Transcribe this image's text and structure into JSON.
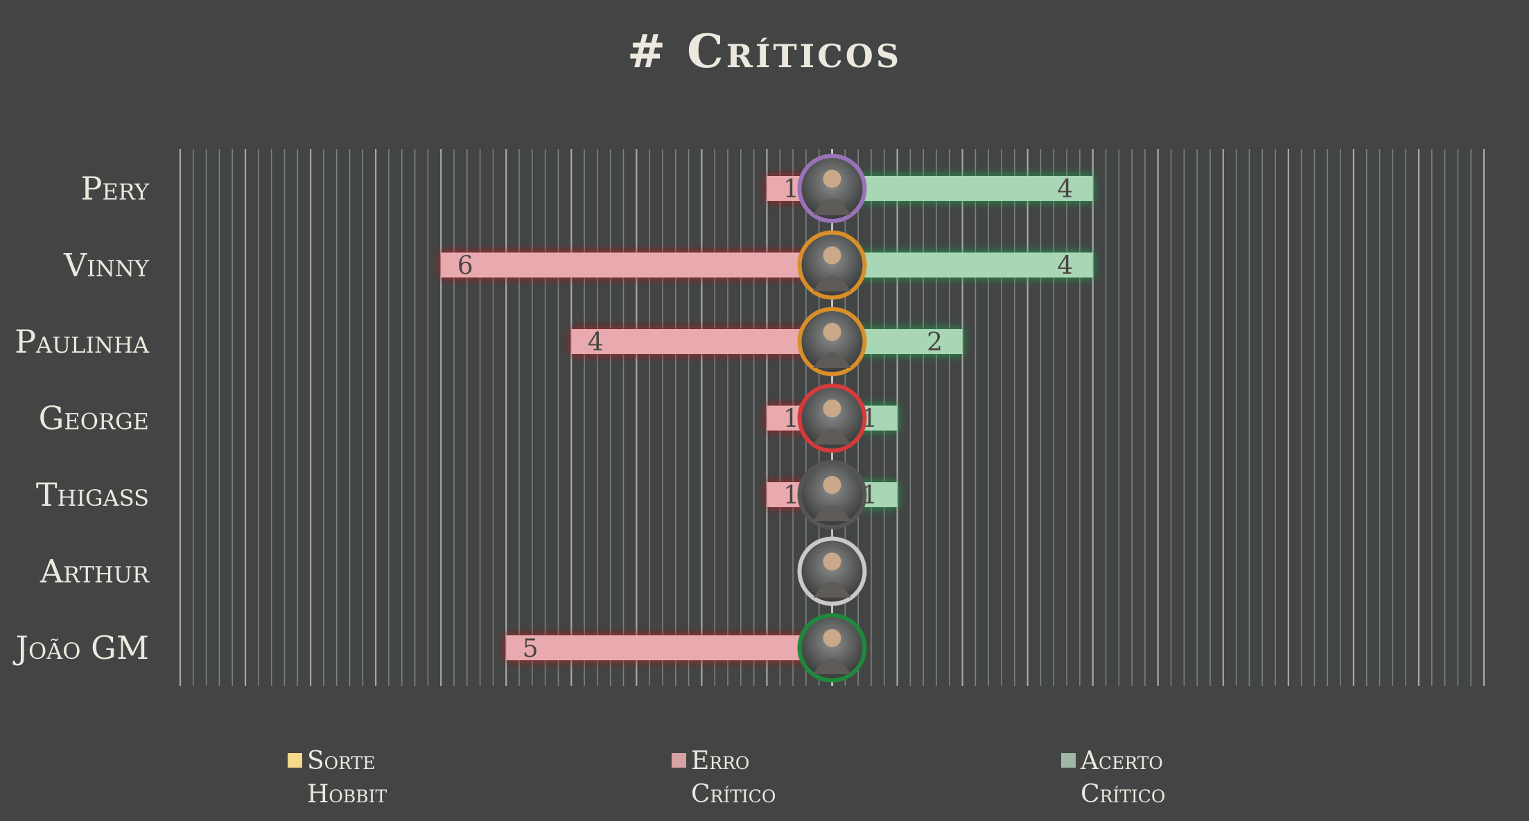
{
  "chart_data": {
    "type": "bar",
    "orientation": "horizontal-diverging",
    "title": "# Críticos",
    "categories": [
      "Pery",
      "Vinny",
      "Paulinha",
      "George",
      "Thigass",
      "Arthur",
      "João GM"
    ],
    "series": [
      {
        "name": "Sorte Hobbit",
        "color": "#f5d98b",
        "values": [
          0,
          0,
          0,
          0,
          0,
          0,
          0
        ]
      },
      {
        "name": "Erro Crítico",
        "color": "#d9a3a6",
        "values": [
          1,
          6,
          4,
          1,
          1,
          0,
          5
        ]
      },
      {
        "name": "Acerto Crítico",
        "color": "#9fb7a4",
        "values": [
          4,
          4,
          2,
          1,
          1,
          0,
          0
        ]
      }
    ],
    "xlim": [
      -10,
      10
    ],
    "grid": true,
    "legend": "bottom",
    "avatar_ring_colors": [
      "#9a72b8",
      "#d88f2a",
      "#d88f2a",
      "#d63a3a",
      "#555555",
      "#c9c9c9",
      "#1f8a3b"
    ],
    "bar_colors": {
      "negative": "#e8aaae",
      "positive": "#a9d6b4",
      "negative_glow": "#c01818",
      "positive_glow": "#1fae4a"
    }
  },
  "legend_items": [
    {
      "line1": "Sorte",
      "line2": "Hobbit",
      "color": "#f5d98b"
    },
    {
      "line1": "Erro",
      "line2": "Crítico",
      "color": "#d9a3a6"
    },
    {
      "line1": "Acerto",
      "line2": "Crítico",
      "color": "#9fb7a4"
    }
  ]
}
